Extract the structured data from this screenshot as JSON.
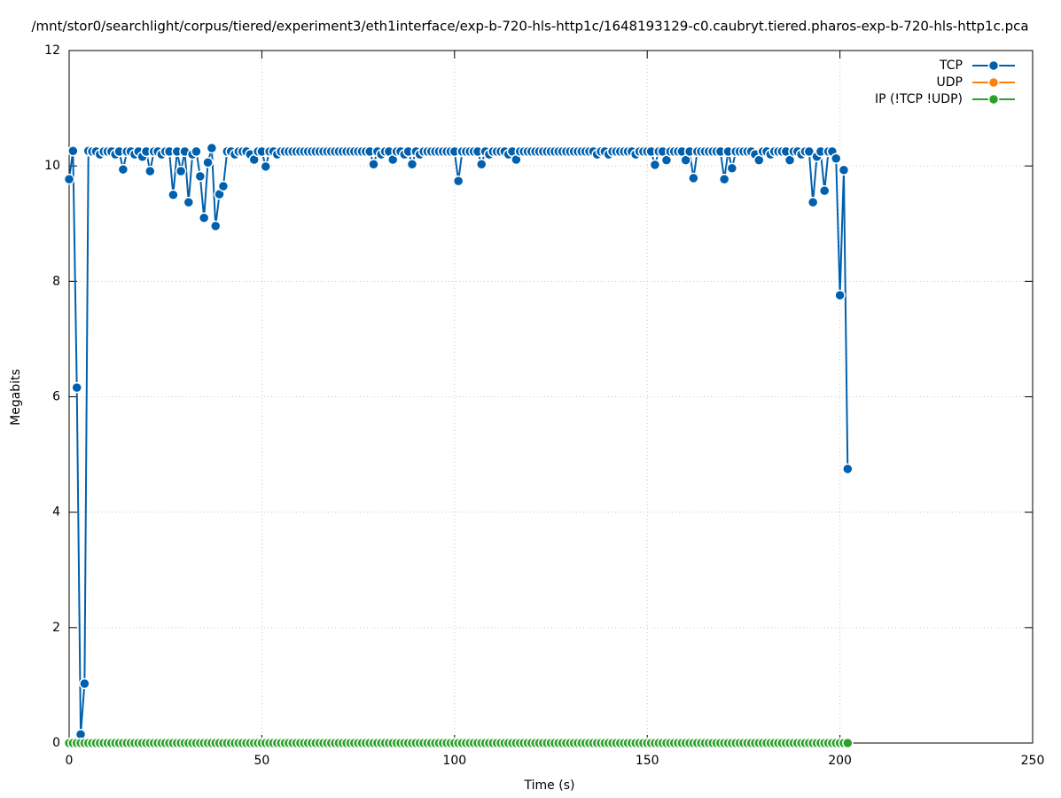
{
  "chart_data": {
    "type": "line",
    "title": "/mnt/stor0/searchlight/corpus/tiered/experiment3/eth1interface/exp-b-720-hls-http1c/1648193129-c0.caubryt.tiered.pharos-exp-b-720-hls-http1c.pca",
    "x_label": "Time (s)",
    "y_label": "Megabits",
    "xlim": [
      0,
      250
    ],
    "xticks": [
      0,
      50,
      100,
      150,
      200,
      250
    ],
    "ylim": [
      0,
      12
    ],
    "yticks": [
      0,
      2,
      4,
      6,
      8,
      10,
      12
    ],
    "grid": true,
    "legend": "top-right",
    "x": [
      0,
      1,
      2,
      3,
      4,
      5,
      6,
      7,
      8,
      9,
      10,
      11,
      12,
      13,
      14,
      15,
      16,
      17,
      18,
      19,
      20,
      21,
      22,
      23,
      24,
      25,
      26,
      27,
      28,
      29,
      30,
      31,
      32,
      33,
      34,
      35,
      36,
      37,
      38,
      39,
      40,
      41,
      42,
      43,
      44,
      45,
      46,
      47,
      48,
      49,
      50,
      51,
      52,
      53,
      54,
      55,
      56,
      57,
      58,
      59,
      60,
      61,
      62,
      63,
      64,
      65,
      66,
      67,
      68,
      69,
      70,
      71,
      72,
      73,
      74,
      75,
      76,
      77,
      78,
      79,
      80,
      81,
      82,
      83,
      84,
      85,
      86,
      87,
      88,
      89,
      90,
      91,
      92,
      93,
      94,
      95,
      96,
      97,
      98,
      99,
      100,
      101,
      102,
      103,
      104,
      105,
      106,
      107,
      108,
      109,
      110,
      111,
      112,
      113,
      114,
      115,
      116,
      117,
      118,
      119,
      120,
      121,
      122,
      123,
      124,
      125,
      126,
      127,
      128,
      129,
      130,
      131,
      132,
      133,
      134,
      135,
      136,
      137,
      138,
      139,
      140,
      141,
      142,
      143,
      144,
      145,
      146,
      147,
      148,
      149,
      150,
      151,
      152,
      153,
      154,
      155,
      156,
      157,
      158,
      159,
      160,
      161,
      162,
      163,
      164,
      165,
      166,
      167,
      168,
      169,
      170,
      171,
      172,
      173,
      174,
      175,
      176,
      177,
      178,
      179,
      180,
      181,
      182,
      183,
      184,
      185,
      186,
      187,
      188,
      189,
      190,
      191,
      192,
      193,
      194,
      195,
      196,
      197,
      198,
      199,
      200,
      201,
      202
    ],
    "series": [
      {
        "name": "TCP",
        "color": "#0060ad",
        "values": [
          9.77,
          10.26,
          6.16,
          0.15,
          1.03,
          10.26,
          10.25,
          10.25,
          10.2,
          10.25,
          10.25,
          10.25,
          10.2,
          10.25,
          9.94,
          10.25,
          10.25,
          10.2,
          10.25,
          10.16,
          10.25,
          9.91,
          10.25,
          10.25,
          10.2,
          10.25,
          10.25,
          9.5,
          10.25,
          9.91,
          10.25,
          9.37,
          10.2,
          10.25,
          9.82,
          9.1,
          10.06,
          10.31,
          8.96,
          9.51,
          9.65,
          10.25,
          10.25,
          10.2,
          10.25,
          10.25,
          10.25,
          10.2,
          10.11,
          10.25,
          10.25,
          9.99,
          10.25,
          10.25,
          10.2,
          10.25,
          10.25,
          10.25,
          10.25,
          10.25,
          10.25,
          10.25,
          10.25,
          10.25,
          10.25,
          10.25,
          10.25,
          10.25,
          10.25,
          10.25,
          10.25,
          10.25,
          10.25,
          10.25,
          10.25,
          10.25,
          10.25,
          10.25,
          10.25,
          10.03,
          10.25,
          10.2,
          10.25,
          10.25,
          10.11,
          10.25,
          10.25,
          10.2,
          10.25,
          10.03,
          10.25,
          10.2,
          10.25,
          10.25,
          10.25,
          10.25,
          10.25,
          10.25,
          10.25,
          10.25,
          10.25,
          9.74,
          10.25,
          10.25,
          10.25,
          10.25,
          10.25,
          10.03,
          10.25,
          10.2,
          10.25,
          10.25,
          10.25,
          10.25,
          10.2,
          10.25,
          10.11,
          10.25,
          10.25,
          10.25,
          10.25,
          10.25,
          10.25,
          10.25,
          10.25,
          10.25,
          10.25,
          10.25,
          10.25,
          10.25,
          10.25,
          10.25,
          10.25,
          10.25,
          10.25,
          10.25,
          10.25,
          10.2,
          10.25,
          10.25,
          10.2,
          10.25,
          10.25,
          10.25,
          10.25,
          10.25,
          10.25,
          10.2,
          10.25,
          10.25,
          10.25,
          10.25,
          10.02,
          10.25,
          10.25,
          10.1,
          10.25,
          10.25,
          10.25,
          10.25,
          10.1,
          10.25,
          9.79,
          10.25,
          10.25,
          10.25,
          10.25,
          10.25,
          10.25,
          10.25,
          9.77,
          10.25,
          9.96,
          10.25,
          10.25,
          10.25,
          10.25,
          10.25,
          10.2,
          10.1,
          10.25,
          10.25,
          10.2,
          10.25,
          10.25,
          10.25,
          10.25,
          10.1,
          10.25,
          10.25,
          10.2,
          10.25,
          10.25,
          9.37,
          10.16,
          10.25,
          9.57,
          10.25,
          10.25,
          10.13,
          7.76,
          9.93,
          4.75
        ]
      },
      {
        "name": "UDP",
        "color": "#ff7f0e",
        "values": [
          null,
          null,
          null,
          null,
          null,
          null,
          null,
          null,
          null,
          null,
          null,
          null,
          null,
          null,
          null,
          null,
          null,
          null,
          null,
          null,
          null,
          null,
          null,
          null,
          null,
          null,
          null,
          null,
          null,
          null,
          null,
          null,
          null,
          null,
          null,
          null,
          null,
          null,
          null,
          null,
          null,
          null,
          null,
          null,
          null,
          null,
          null,
          null,
          null,
          null,
          null,
          null,
          null,
          null,
          null,
          null,
          null,
          null,
          null,
          null,
          null,
          null,
          null,
          null,
          null,
          null,
          null,
          null,
          null,
          null,
          null,
          null,
          null,
          null,
          null,
          null,
          null,
          null,
          null,
          null,
          null,
          null,
          null,
          null,
          null,
          null,
          null,
          null,
          null,
          null,
          null,
          null,
          null,
          null,
          null,
          null,
          null,
          null,
          null,
          null,
          null,
          null,
          null,
          null,
          null,
          null,
          null,
          null,
          null,
          null,
          null,
          null,
          null,
          null,
          null,
          null,
          null,
          null,
          null,
          null,
          null,
          null,
          null,
          null,
          null,
          null,
          null,
          null,
          null,
          null,
          null,
          null,
          null,
          null,
          null,
          null,
          null,
          null,
          null,
          null,
          null,
          null,
          null,
          null,
          null,
          null,
          null,
          null,
          null,
          null,
          null,
          null,
          null,
          null,
          null,
          null,
          null,
          null,
          null,
          null,
          null,
          null,
          null,
          null,
          null,
          null,
          null,
          null,
          null,
          null,
          null,
          null,
          null,
          null,
          null,
          null,
          null,
          null,
          null,
          null,
          null,
          null,
          null,
          null,
          null,
          null,
          null,
          null,
          null,
          null,
          null,
          null,
          null,
          null,
          null,
          null,
          null,
          null,
          null,
          null,
          null,
          null,
          null
        ]
      },
      {
        "name": "IP (!TCP  !UDP)",
        "color": "#2ca02c",
        "values": [
          0,
          0,
          0,
          0,
          0,
          0,
          0,
          0,
          0,
          0,
          0,
          0,
          0,
          0,
          0,
          0,
          0,
          0,
          0,
          0,
          0,
          0,
          0,
          0,
          0,
          0,
          0,
          0,
          0,
          0,
          0,
          0,
          0,
          0,
          0,
          0,
          0,
          0,
          0,
          0,
          0,
          0,
          0,
          0,
          0,
          0,
          0,
          0,
          0,
          0,
          0,
          0,
          0,
          0,
          0,
          0,
          0,
          0,
          0,
          0,
          0,
          0,
          0,
          0,
          0,
          0,
          0,
          0,
          0,
          0,
          0,
          0,
          0,
          0,
          0,
          0,
          0,
          0,
          0,
          0,
          0,
          0,
          0,
          0,
          0,
          0,
          0,
          0,
          0,
          0,
          0,
          0,
          0,
          0,
          0,
          0,
          0,
          0,
          0,
          0,
          0,
          0,
          0,
          0,
          0,
          0,
          0,
          0,
          0,
          0,
          0,
          0,
          0,
          0,
          0,
          0,
          0,
          0,
          0,
          0,
          0,
          0,
          0,
          0,
          0,
          0,
          0,
          0,
          0,
          0,
          0,
          0,
          0,
          0,
          0,
          0,
          0,
          0,
          0,
          0,
          0,
          0,
          0,
          0,
          0,
          0,
          0,
          0,
          0,
          0,
          0,
          0,
          0,
          0,
          0,
          0,
          0,
          0,
          0,
          0,
          0,
          0,
          0,
          0,
          0,
          0,
          0,
          0,
          0,
          0,
          0,
          0,
          0,
          0,
          0,
          0,
          0,
          0,
          0,
          0,
          0,
          0,
          0,
          0,
          0,
          0,
          0,
          0,
          0,
          0,
          0,
          0,
          0,
          0,
          0,
          0,
          0,
          0,
          0,
          0,
          0,
          0,
          0
        ]
      }
    ]
  }
}
